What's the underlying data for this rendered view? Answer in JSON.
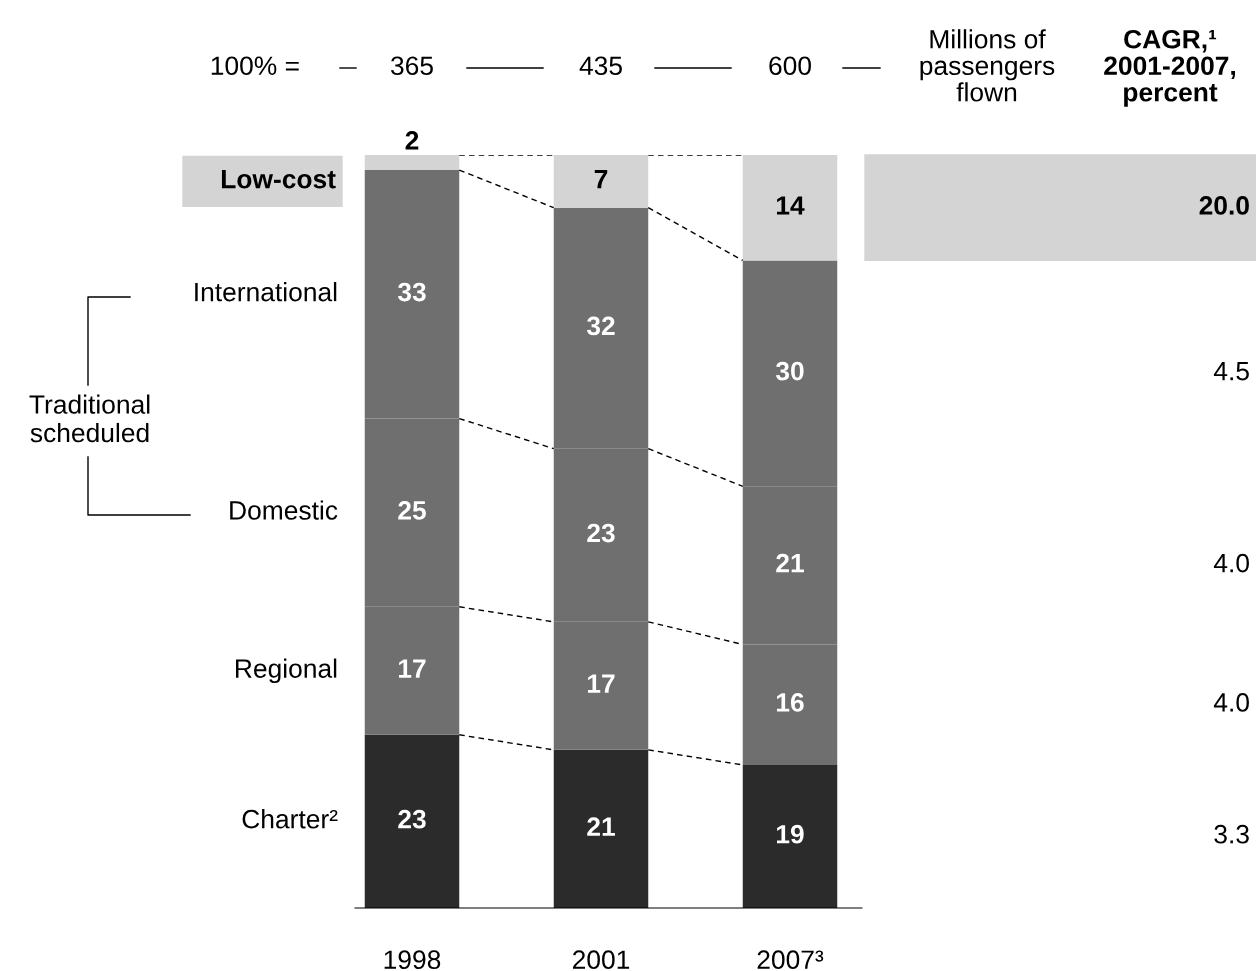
{
  "chart_data": {
    "type": "bar",
    "stacked": true,
    "categories": [
      "1998",
      "2001",
      "2007³"
    ],
    "series": [
      {
        "name": "Charter²",
        "color": "#2b2b2b",
        "values": [
          23,
          21,
          19
        ]
      },
      {
        "name": "Regional",
        "color": "#6f6f6f",
        "values": [
          17,
          17,
          16
        ]
      },
      {
        "name": "Domestic",
        "color": "#6f6f6f",
        "values": [
          25,
          23,
          21
        ]
      },
      {
        "name": "International",
        "color": "#6f6f6f",
        "values": [
          33,
          32,
          30
        ]
      },
      {
        "name": "Low-cost",
        "color": "#d4d4d4",
        "values": [
          2,
          7,
          14
        ]
      }
    ],
    "data_labels": true,
    "legend": false,
    "annotations": [
      "100% =",
      "365",
      "435",
      "600",
      "Millions of\npassengers\nflown",
      "CAGR,¹\n2001-2007,\npercent",
      "Traditional\nscheduled",
      "3.3",
      "4.0",
      "4.0",
      "4.5",
      "20.0"
    ]
  }
}
